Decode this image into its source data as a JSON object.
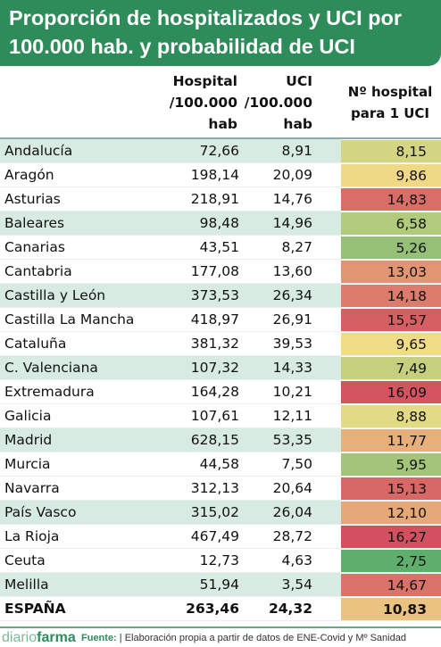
{
  "title": {
    "line1": "Proporción de hospitalizados y UCI por",
    "line2": "100.000 hab. y probabilidad de UCI"
  },
  "colors": {
    "banner": "#2e8b5a",
    "row_shade": "#d7ebe2",
    "scale_low": "#5fae6b",
    "scale_mid": "#f1df88",
    "scale_high": "#d2505f"
  },
  "chart_data": {
    "type": "table",
    "columns": [
      "",
      "Hospital\n/100.000\nhab",
      "UCI\n/100.000\nhab",
      "Nº hospital\npara 1 UCI"
    ],
    "rows": [
      {
        "name": "Andalucía",
        "hospital": "72,66",
        "uci": "8,91",
        "ratio": "8,15",
        "ratio_value": 8.15
      },
      {
        "name": "Aragón",
        "hospital": "198,14",
        "uci": "20,09",
        "ratio": "9,86",
        "ratio_value": 9.86
      },
      {
        "name": "Asturias",
        "hospital": "218,91",
        "uci": "14,76",
        "ratio": "14,83",
        "ratio_value": 14.83
      },
      {
        "name": "Baleares",
        "hospital": "98,48",
        "uci": "14,96",
        "ratio": "6,58",
        "ratio_value": 6.58
      },
      {
        "name": "Canarias",
        "hospital": "43,51",
        "uci": "8,27",
        "ratio": "5,26",
        "ratio_value": 5.26
      },
      {
        "name": "Cantabria",
        "hospital": "177,08",
        "uci": "13,60",
        "ratio": "13,03",
        "ratio_value": 13.03
      },
      {
        "name": "Castilla y León",
        "hospital": "373,53",
        "uci": "26,34",
        "ratio": "14,18",
        "ratio_value": 14.18
      },
      {
        "name": "Castilla La Mancha",
        "hospital": "418,97",
        "uci": "26,91",
        "ratio": "15,57",
        "ratio_value": 15.57
      },
      {
        "name": "Cataluña",
        "hospital": "381,32",
        "uci": "39,53",
        "ratio": "9,65",
        "ratio_value": 9.65
      },
      {
        "name": "C. Valenciana",
        "hospital": "107,32",
        "uci": "14,33",
        "ratio": "7,49",
        "ratio_value": 7.49
      },
      {
        "name": "Extremadura",
        "hospital": "164,28",
        "uci": "10,21",
        "ratio": "16,09",
        "ratio_value": 16.09
      },
      {
        "name": "Galicia",
        "hospital": "107,61",
        "uci": "12,11",
        "ratio": "8,88",
        "ratio_value": 8.88
      },
      {
        "name": "Madrid",
        "hospital": "628,15",
        "uci": "53,35",
        "ratio": "11,77",
        "ratio_value": 11.77
      },
      {
        "name": "Murcia",
        "hospital": "44,58",
        "uci": "7,50",
        "ratio": "5,95",
        "ratio_value": 5.95
      },
      {
        "name": "Navarra",
        "hospital": "312,13",
        "uci": "20,64",
        "ratio": "15,13",
        "ratio_value": 15.13
      },
      {
        "name": "País Vasco",
        "hospital": "315,02",
        "uci": "26,04",
        "ratio": "12,10",
        "ratio_value": 12.1
      },
      {
        "name": "La Rioja",
        "hospital": "467,49",
        "uci": "28,72",
        "ratio": "16,27",
        "ratio_value": 16.27
      },
      {
        "name": "Ceuta",
        "hospital": "12,73",
        "uci": "4,63",
        "ratio": "2,75",
        "ratio_value": 2.75
      },
      {
        "name": "Melilla",
        "hospital": "51,94",
        "uci": "3,54",
        "ratio": "14,67",
        "ratio_value": 14.67
      },
      {
        "name": "ESPAÑA",
        "hospital": "263,46",
        "uci": "24,32",
        "ratio": "10,83",
        "ratio_value": 10.83,
        "total": true
      }
    ]
  },
  "footer": {
    "brand_part1": "diario",
    "brand_part2": "farma",
    "source_label": "Fuente:",
    "source_text": "| Elaboración propia a partir de datos de ENE-Covid y Mº Sanidad"
  }
}
